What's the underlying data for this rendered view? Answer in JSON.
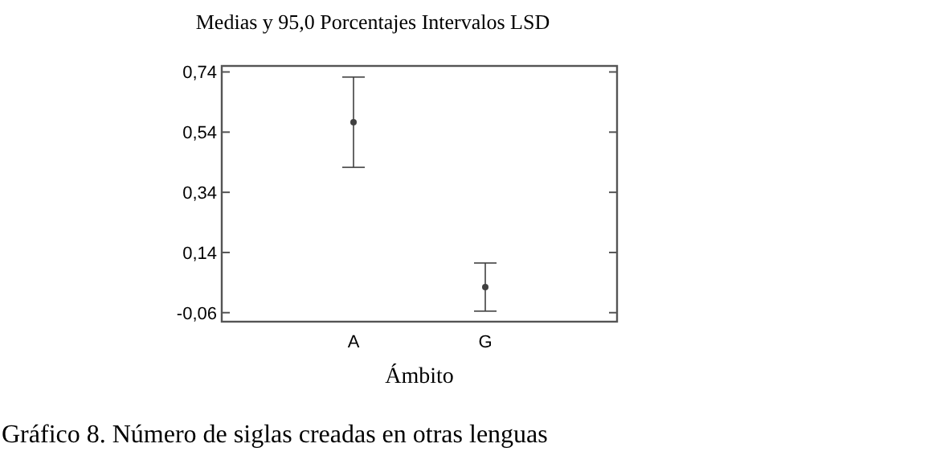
{
  "chart_data": {
    "type": "scatter",
    "title": "Medias y 95,0 Porcentajes Intervalos LSD",
    "xlabel": "Ámbito",
    "annotations": [
      "Gráfico 8. Número de siglas creadas en otras lenguas"
    ],
    "categories": [
      "A",
      "G"
    ],
    "series": [
      {
        "color": "#404040",
        "values": [
          0.573,
          0.025
        ],
        "errors": [
          0.15,
          0.08
        ]
      }
    ],
    "marker": "circle",
    "ylim": [
      -0.09,
      0.76
    ],
    "yticks": [
      {
        "value": -0.06,
        "label": "-0,06"
      },
      {
        "value": 0.14,
        "label": "0,14"
      },
      {
        "value": 0.34,
        "label": "0,34"
      },
      {
        "value": 0.54,
        "label": "0,54"
      },
      {
        "value": 0.74,
        "label": "0,74"
      }
    ]
  }
}
